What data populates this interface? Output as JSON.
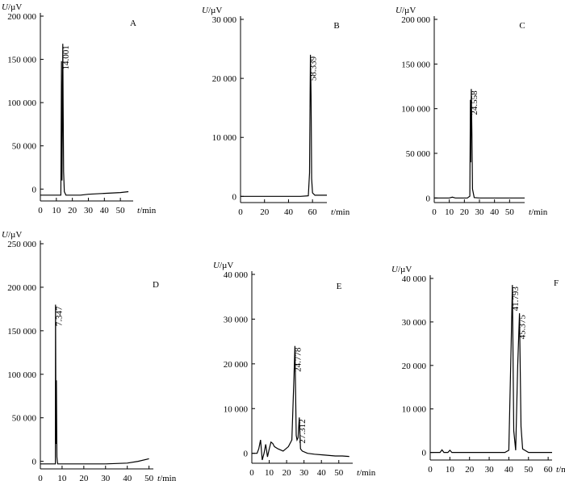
{
  "chart_data": [
    {
      "type": "line",
      "panel": "A",
      "ylabel_var": "U",
      "ylabel_unit": "/µV",
      "xlabel_var": "t",
      "xlabel_unit": "/min",
      "ylim": [
        -10000,
        200000
      ],
      "xlim": [
        0,
        58
      ],
      "yticks": [
        0,
        50000,
        100000,
        150000,
        200000
      ],
      "ytick_labels": [
        "0",
        "50 000",
        "100 000",
        "150 000",
        "200 000"
      ],
      "xticks": [
        0,
        10,
        20,
        30,
        40,
        50
      ],
      "xtick_labels": [
        "0",
        "10",
        "20",
        "30",
        "40",
        "50"
      ],
      "peaks": [
        {
          "label": "14.001",
          "x": 14.0,
          "y": 168000
        }
      ],
      "series": [
        {
          "x": [
            0,
            12.8,
            13.2,
            13.5,
            13.8,
            14.0,
            14.2,
            14.5,
            15.0,
            16.0,
            20,
            25,
            30,
            40,
            50,
            55
          ],
          "y": [
            -7000,
            -7000,
            148000,
            10000,
            100000,
            168000,
            100000,
            20000,
            -3000,
            -7000,
            -7000,
            -7000,
            -6000,
            -5000,
            -4000,
            -3000
          ]
        }
      ]
    },
    {
      "type": "line",
      "panel": "B",
      "ylabel_var": "U",
      "ylabel_unit": "/µV",
      "xlabel_var": "t",
      "xlabel_unit": "/min",
      "ylim": [
        -500,
        30000
      ],
      "xlim": [
        0,
        72
      ],
      "yticks": [
        0,
        10000,
        20000,
        30000
      ],
      "ytick_labels": [
        "0",
        "10 000",
        "20 000",
        "30 000"
      ],
      "xticks": [
        0,
        20,
        40,
        60
      ],
      "xtick_labels": [
        "0",
        "20",
        "40",
        "60"
      ],
      "peaks": [
        {
          "label": "58.339",
          "x": 58.3,
          "y": 24000
        }
      ],
      "series": [
        {
          "x": [
            0,
            50,
            56.5,
            57.5,
            58.0,
            58.3,
            58.8,
            59.3,
            60,
            62,
            72
          ],
          "y": [
            0,
            0,
            100,
            4000,
            17000,
            24000,
            17000,
            3000,
            600,
            200,
            200
          ]
        }
      ]
    },
    {
      "type": "line",
      "panel": "C",
      "ylabel_var": "U",
      "ylabel_unit": "/µV",
      "xlabel_var": "t",
      "xlabel_unit": "/min",
      "ylim": [
        -1500,
        200000
      ],
      "xlim": [
        0,
        60
      ],
      "yticks": [
        0,
        50000,
        100000,
        150000,
        200000
      ],
      "ytick_labels": [
        "0",
        "50 000",
        "100 000",
        "150 000",
        "200 000"
      ],
      "xticks": [
        0,
        10,
        20,
        30,
        40,
        50
      ],
      "xtick_labels": [
        "0",
        "10",
        "20",
        "30",
        "40",
        "50"
      ],
      "peaks": [
        {
          "label": "24.558",
          "x": 24.6,
          "y": 122000
        }
      ],
      "series": [
        {
          "x": [
            0,
            10,
            12,
            14,
            22,
            23.6,
            24.0,
            24.2,
            24.6,
            25.0,
            25.4,
            26.5,
            30,
            60
          ],
          "y": [
            0,
            0,
            900,
            0,
            0,
            2000,
            110000,
            40000,
            122000,
            70000,
            10000,
            500,
            0,
            0
          ]
        }
      ]
    },
    {
      "type": "line",
      "panel": "D",
      "ylabel_var": "U",
      "ylabel_unit": "/µV",
      "xlabel_var": "t",
      "xlabel_unit": "/min",
      "ylim": [
        -5000,
        250000
      ],
      "xlim": [
        0,
        52
      ],
      "yticks": [
        0,
        50000,
        100000,
        150000,
        200000,
        250000
      ],
      "ytick_labels": [
        "0",
        "50 000",
        "100 000",
        "150 000",
        "200 000",
        "250 000"
      ],
      "xticks": [
        0,
        10,
        20,
        30,
        40,
        50
      ],
      "xtick_labels": [
        "0",
        "10",
        "20",
        "30",
        "40",
        "50"
      ],
      "peaks": [
        {
          "label": "7.347",
          "x": 7.3,
          "y": 180000
        }
      ],
      "series": [
        {
          "x": [
            0,
            6.9,
            7.0,
            7.2,
            7.4,
            7.6,
            7.8,
            8.0,
            10,
            20,
            30,
            40,
            45,
            50
          ],
          "y": [
            -3000,
            -3000,
            180000,
            20000,
            93000,
            5000,
            0,
            -3000,
            -3000,
            -3000,
            -3000,
            -2000,
            0,
            3000
          ]
        }
      ]
    },
    {
      "type": "line",
      "panel": "E",
      "ylabel_var": "U",
      "ylabel_unit": "/µV",
      "xlabel_var": "t",
      "xlabel_unit": "/min",
      "ylim": [
        -1500,
        40000
      ],
      "xlim": [
        0,
        58
      ],
      "yticks": [
        0,
        10000,
        20000,
        30000,
        40000
      ],
      "ytick_labels": [
        "0",
        "10 000",
        "20 000",
        "30 000",
        "40 000"
      ],
      "xticks": [
        0,
        10,
        20,
        30,
        40,
        50
      ],
      "xtick_labels": [
        "0",
        "10",
        "20",
        "30",
        "40",
        "50"
      ],
      "peaks": [
        {
          "label": "24.778",
          "x": 24.8,
          "y": 24000
        },
        {
          "label": "27.312",
          "x": 27.3,
          "y": 8000
        }
      ],
      "series": [
        {
          "x": [
            0,
            3,
            4,
            5,
            6,
            7,
            8,
            9,
            10,
            11,
            12,
            13,
            15,
            18,
            21,
            23,
            24.2,
            24.8,
            25.5,
            26,
            26.6,
            27.3,
            28,
            29,
            32,
            36,
            42,
            48,
            52,
            56
          ],
          "y": [
            0,
            0,
            1000,
            3000,
            -1500,
            0,
            2000,
            -800,
            1000,
            2500,
            2200,
            1500,
            1000,
            500,
            1500,
            3000,
            17000,
            24000,
            4000,
            3000,
            3500,
            8000,
            1000,
            500,
            0,
            -200,
            -400,
            -600,
            -600,
            -700
          ]
        }
      ]
    },
    {
      "type": "line",
      "panel": "F",
      "ylabel_var": "U",
      "ylabel_unit": "/µV",
      "xlabel_var": "t",
      "xlabel_unit": "/min",
      "ylim": [
        -1000,
        40000
      ],
      "xlim": [
        0,
        62
      ],
      "yticks": [
        0,
        10000,
        20000,
        30000,
        40000
      ],
      "ytick_labels": [
        "0",
        "10 000",
        "20 000",
        "30 000",
        "40 000"
      ],
      "xticks": [
        0,
        10,
        20,
        30,
        40,
        50,
        60
      ],
      "xtick_labels": [
        "0",
        "10",
        "20",
        "30",
        "40",
        "50",
        "60"
      ],
      "peaks": [
        {
          "label": "41.793",
          "x": 41.8,
          "y": 38500
        },
        {
          "label": "45.375",
          "x": 45.4,
          "y": 32000
        }
      ],
      "series": [
        {
          "x": [
            0,
            5,
            6,
            7,
            9,
            10,
            11,
            20,
            30,
            38,
            40,
            41.2,
            41.8,
            42.5,
            43.5,
            44.5,
            45.4,
            46.2,
            47,
            50,
            55,
            62
          ],
          "y": [
            0,
            0,
            600,
            0,
            0,
            500,
            0,
            0,
            0,
            0,
            500,
            25000,
            38500,
            5000,
            500,
            20000,
            32000,
            6000,
            800,
            0,
            0,
            0
          ]
        }
      ]
    }
  ]
}
